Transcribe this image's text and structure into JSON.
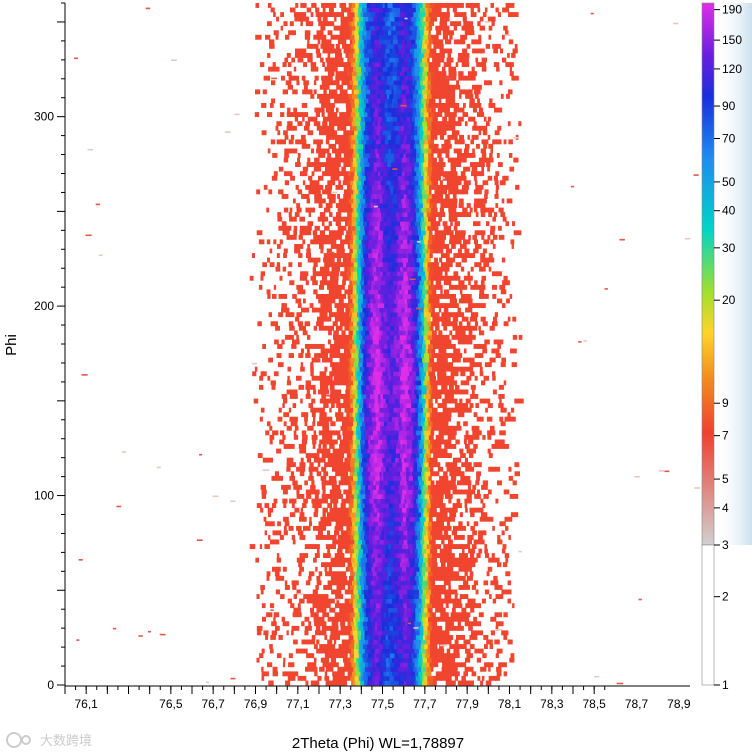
{
  "chart_data": {
    "type": "heatmap",
    "title": "",
    "xlabel": "2Theta (Phi) WL=1,78897",
    "ylabel": "Phi",
    "xlim": [
      76.0,
      79.0
    ],
    "ylim": [
      0,
      360
    ],
    "x_tick_labels": [
      "76,1",
      "76,5",
      "76,7",
      "76,9",
      "77,1",
      "77,3",
      "77,5",
      "77,7",
      "77,9",
      "78,1",
      "78,3",
      "78,5",
      "78,7",
      "78,9"
    ],
    "x_tick_values": [
      76.1,
      76.5,
      76.7,
      76.9,
      77.1,
      77.3,
      77.5,
      77.7,
      77.9,
      78.1,
      78.3,
      78.5,
      78.7,
      78.9
    ],
    "y_tick_labels": [
      "0",
      "100",
      "200",
      "300"
    ],
    "y_tick_values": [
      0,
      100,
      200,
      300
    ],
    "peak": {
      "center_2theta": 77.53,
      "peak_max_counts": 200,
      "max_counts_phi": 160,
      "max_counts_2theta": 77.45,
      "min_counts_phi": 0
    },
    "colorbar": {
      "scale": "log",
      "range": [
        1,
        200
      ],
      "tick_labels": [
        "190",
        "150",
        "120",
        "90",
        "70",
        "50",
        "40",
        "30",
        "20",
        "9",
        "7",
        "5",
        "4",
        "3",
        "2",
        "1"
      ],
      "tick_values": [
        190,
        150,
        120,
        90,
        70,
        50,
        40,
        30,
        20,
        9,
        7,
        5,
        4,
        3,
        2,
        1
      ],
      "colors": [
        "#d0d0d0",
        "#f04030",
        "#f28a1e",
        "#ffd42a",
        "#9ee02e",
        "#00d4c8",
        "#1e8af0",
        "#1a2edc",
        "#6a1ee0",
        "#e02ee8"
      ],
      "color_stops_counts": [
        1,
        3,
        5,
        8,
        12,
        22,
        45,
        80,
        120,
        200
      ]
    },
    "watermark": "大数跨境"
  }
}
